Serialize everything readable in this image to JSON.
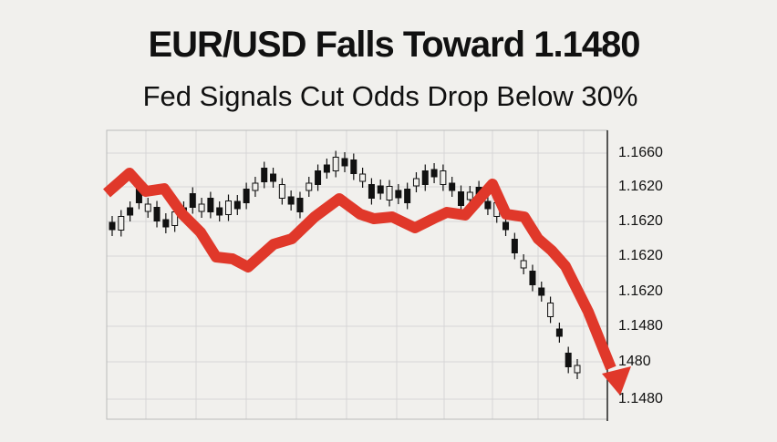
{
  "header": {
    "title": "EUR/USD Falls Toward 1.1480",
    "subtitle": "Fed Signals Cut Odds Drop Below 30%"
  },
  "axis": {
    "labels": [
      "1.1660",
      "1.1620",
      "1.1620",
      "1.1620",
      "1.1620",
      "1.1480",
      "1480",
      "1.1480"
    ]
  }
}
